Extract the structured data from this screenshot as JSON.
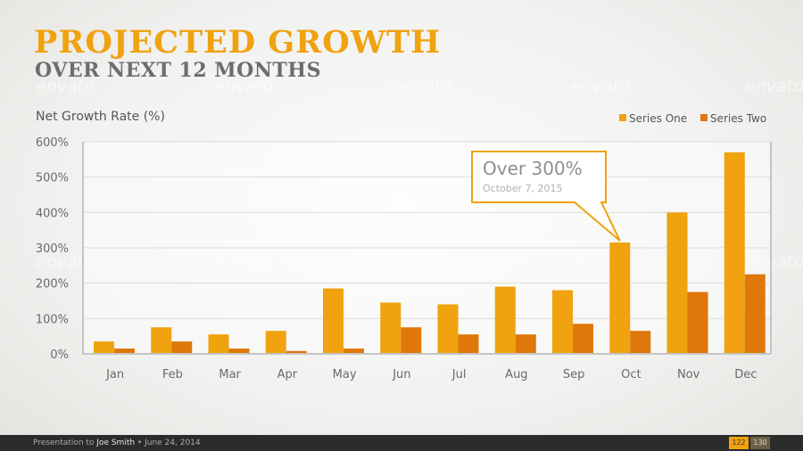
{
  "header": {
    "title": "PROJECTED GROWTH",
    "subtitle": "OVER NEXT 12 MONTHS"
  },
  "chart_data": {
    "type": "bar",
    "ylabel": "Net Growth Rate (%)",
    "categories": [
      "Jan",
      "Feb",
      "Mar",
      "Apr",
      "May",
      "Jun",
      "Jul",
      "Aug",
      "Sep",
      "Oct",
      "Nov",
      "Dec"
    ],
    "series": [
      {
        "name": "Series One",
        "color": "#f0a20f",
        "values": [
          35,
          75,
          55,
          65,
          185,
          145,
          140,
          190,
          180,
          315,
          400,
          570
        ]
      },
      {
        "name": "Series Two",
        "color": "#e0770a",
        "values": [
          15,
          35,
          15,
          8,
          15,
          75,
          55,
          55,
          85,
          65,
          175,
          225
        ]
      }
    ],
    "ylim": [
      0,
      600
    ],
    "yticks": [
      "0%",
      "100%",
      "200%",
      "300%",
      "400%",
      "500%",
      "600%"
    ],
    "grid": true,
    "legend": "top-right",
    "annotation": {
      "category": "Oct",
      "text": "Over 300%",
      "subtext": "October 7, 2015"
    }
  },
  "watermark": "envato",
  "footer": {
    "prefix": "Presentation to ",
    "name": "Joe Smith",
    "suffix": " • June 24, 2014",
    "page": "122",
    "total": "130"
  }
}
